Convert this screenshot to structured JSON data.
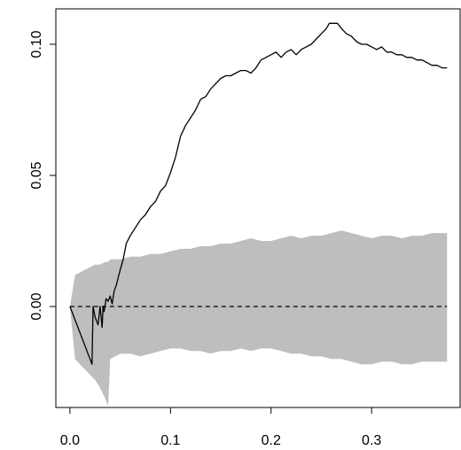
{
  "chart_data": {
    "type": "line",
    "title": "",
    "xlabel": "",
    "ylabel": "",
    "xlim": [
      -0.014,
      0.388
    ],
    "ylim": [
      -0.0385,
      0.1135
    ],
    "x_ticks": [
      0.0,
      0.1,
      0.2,
      0.3
    ],
    "x_tick_labels": [
      "0.0",
      "0.1",
      "0.2",
      "0.3"
    ],
    "y_ticks": [
      0.0,
      0.05,
      0.1
    ],
    "y_tick_labels": [
      "0.00",
      "0.05",
      "0.10"
    ],
    "grid": false,
    "colors": {
      "line": "#000000",
      "band": "#bebebe",
      "reference": "#000000"
    },
    "series": [
      {
        "type": "line",
        "x": [
          0.0,
          0.022,
          0.023,
          0.025,
          0.028,
          0.03,
          0.032,
          0.033,
          0.034,
          0.036,
          0.038,
          0.04,
          0.042,
          0.044,
          0.046,
          0.048,
          0.05,
          0.053,
          0.056,
          0.06,
          0.065,
          0.07,
          0.075,
          0.08,
          0.085,
          0.09,
          0.095,
          0.1,
          0.105,
          0.11,
          0.115,
          0.12,
          0.125,
          0.13,
          0.135,
          0.14,
          0.145,
          0.15,
          0.155,
          0.16,
          0.165,
          0.17,
          0.175,
          0.18,
          0.185,
          0.19,
          0.195,
          0.2,
          0.205,
          0.21,
          0.215,
          0.22,
          0.225,
          0.23,
          0.235,
          0.24,
          0.245,
          0.25,
          0.255,
          0.258,
          0.262,
          0.266,
          0.27,
          0.275,
          0.28,
          0.285,
          0.29,
          0.295,
          0.3,
          0.305,
          0.31,
          0.315,
          0.32,
          0.325,
          0.33,
          0.335,
          0.34,
          0.345,
          0.35,
          0.355,
          0.36,
          0.365,
          0.37,
          0.375
        ],
        "values": [
          0.0,
          -0.022,
          0.0,
          -0.004,
          -0.007,
          0.0,
          -0.008,
          0.0,
          -0.002,
          0.003,
          0.002,
          0.004,
          0.001,
          0.006,
          0.008,
          0.011,
          0.014,
          0.018,
          0.024,
          0.027,
          0.03,
          0.033,
          0.035,
          0.038,
          0.04,
          0.044,
          0.046,
          0.051,
          0.057,
          0.065,
          0.069,
          0.072,
          0.075,
          0.079,
          0.08,
          0.083,
          0.085,
          0.087,
          0.088,
          0.088,
          0.089,
          0.09,
          0.09,
          0.089,
          0.091,
          0.094,
          0.095,
          0.096,
          0.097,
          0.095,
          0.097,
          0.098,
          0.096,
          0.098,
          0.099,
          0.1,
          0.102,
          0.104,
          0.106,
          0.108,
          0.108,
          0.108,
          0.106,
          0.104,
          0.103,
          0.101,
          0.1,
          0.1,
          0.099,
          0.098,
          0.099,
          0.097,
          0.097,
          0.096,
          0.096,
          0.095,
          0.095,
          0.094,
          0.094,
          0.093,
          0.092,
          0.092,
          0.091,
          0.091
        ]
      },
      {
        "type": "area-band",
        "x": [
          0.0,
          0.005,
          0.01,
          0.015,
          0.02,
          0.025,
          0.03,
          0.035,
          0.038,
          0.04,
          0.045,
          0.05,
          0.06,
          0.07,
          0.08,
          0.09,
          0.1,
          0.11,
          0.12,
          0.13,
          0.14,
          0.15,
          0.16,
          0.17,
          0.18,
          0.19,
          0.2,
          0.21,
          0.22,
          0.23,
          0.24,
          0.25,
          0.26,
          0.27,
          0.28,
          0.29,
          0.3,
          0.31,
          0.32,
          0.33,
          0.34,
          0.35,
          0.36,
          0.37,
          0.375
        ],
        "upper": [
          0.0,
          0.012,
          0.013,
          0.014,
          0.015,
          0.016,
          0.016,
          0.017,
          0.017,
          0.018,
          0.018,
          0.018,
          0.019,
          0.019,
          0.02,
          0.02,
          0.021,
          0.022,
          0.022,
          0.023,
          0.023,
          0.024,
          0.024,
          0.025,
          0.026,
          0.025,
          0.025,
          0.026,
          0.027,
          0.026,
          0.027,
          0.027,
          0.028,
          0.029,
          0.028,
          0.027,
          0.026,
          0.027,
          0.027,
          0.026,
          0.027,
          0.027,
          0.028,
          0.028,
          0.028
        ],
        "lower": [
          0.0,
          -0.02,
          -0.022,
          -0.024,
          -0.026,
          -0.028,
          -0.031,
          -0.035,
          -0.038,
          -0.02,
          -0.019,
          -0.018,
          -0.018,
          -0.019,
          -0.018,
          -0.017,
          -0.016,
          -0.016,
          -0.017,
          -0.017,
          -0.018,
          -0.017,
          -0.017,
          -0.016,
          -0.017,
          -0.016,
          -0.016,
          -0.017,
          -0.018,
          -0.018,
          -0.019,
          -0.019,
          -0.02,
          -0.02,
          -0.021,
          -0.022,
          -0.022,
          -0.021,
          -0.021,
          -0.022,
          -0.022,
          -0.021,
          -0.021,
          -0.021,
          -0.021
        ]
      },
      {
        "type": "reference-line",
        "y": 0.0,
        "x_range": [
          0.0,
          0.375
        ],
        "style": "dashed"
      }
    ]
  }
}
